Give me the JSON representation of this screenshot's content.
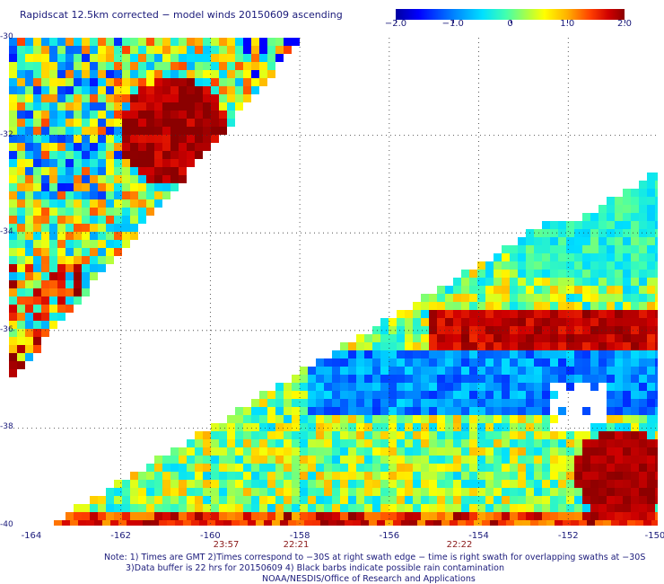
{
  "title": "Rapidscat 12.5km corrected − model winds 20150609 ascending",
  "colorbar": {
    "labels": [
      "−2.0",
      "−1.0",
      "0",
      "1.0",
      "2.0"
    ],
    "min": -2.0,
    "max": 2.0
  },
  "map": {
    "lat_labels": [
      "-30",
      "-32",
      "-34",
      "-36",
      "-38",
      "-40"
    ],
    "lon_labels": [
      "-164",
      "-162",
      "-160",
      "-158",
      "-156",
      "-154",
      "-152",
      "-150"
    ],
    "lat_range": [
      -40,
      -30
    ],
    "lon_range": [
      -164.5,
      -150
    ],
    "grid": "dotted"
  },
  "times": [
    "23:57",
    "22:21",
    "22:22"
  ],
  "notes": {
    "line1": "Note: 1) Times are GMT 2)Times correspond to −30S at right swath edge − time is right swath for overlapping swaths at −30S",
    "line2": "3)Data buffer is 22 hrs for 20150609 4) Black barbs indicate possible rain contamination",
    "line3": "NOAA/NESDIS/Office of Research and Applications"
  }
}
